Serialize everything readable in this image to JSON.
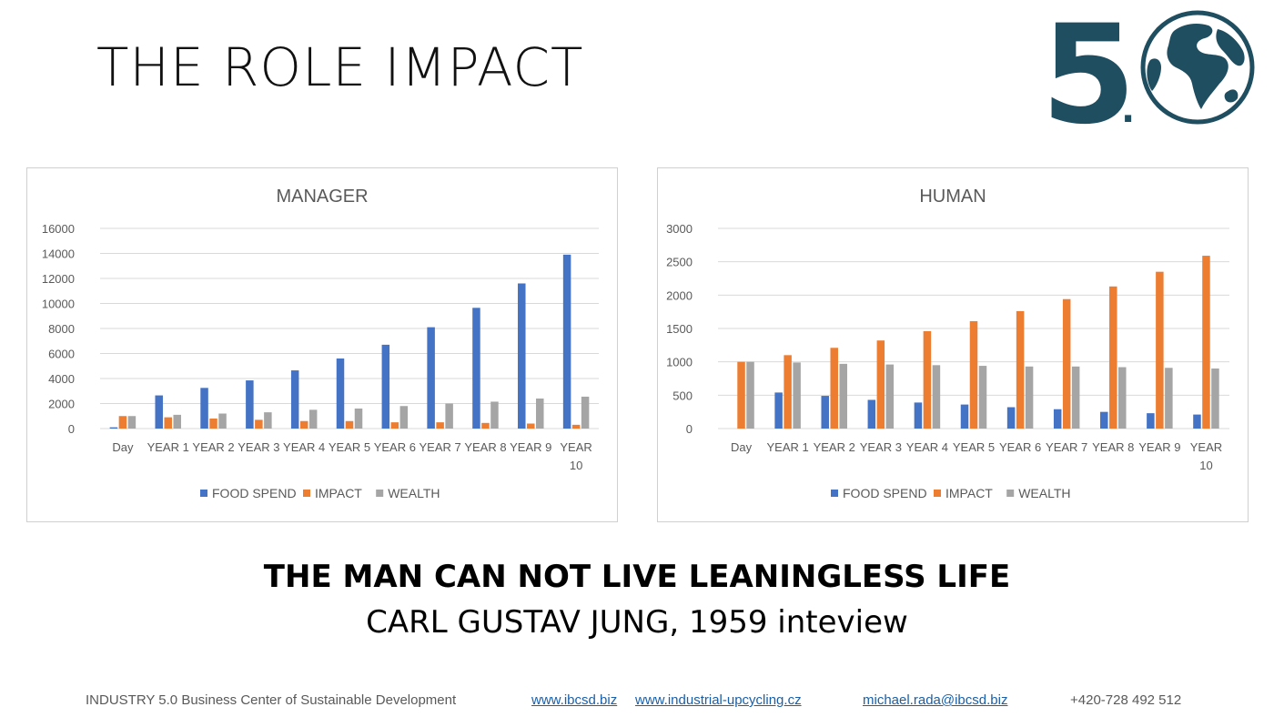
{
  "page": {
    "title": "THE ROLE IMPACT",
    "logo": {
      "text": "5",
      "dot": ".",
      "icon": "globe-icon",
      "color": "#1f4e60"
    },
    "quote": "THE MAN CAN NOT LIVE LEANINGLESS LIFE",
    "attribution": "CARL GUSTAV JUNG, 1959 inteview",
    "footer": {
      "org": "INDUSTRY 5.0 Business Center of Sustainable Development",
      "link1": "www.ibcsd.biz",
      "link2": "www.industrial-upcycling.cz",
      "email": "michael.rada@ibcsd.biz",
      "phone": "+420-728 492 512"
    }
  },
  "chart_data": [
    {
      "type": "bar",
      "title": "MANAGER",
      "categories": [
        "Day",
        "YEAR 1",
        "YEAR 2",
        "YEAR 3",
        "YEAR 4",
        "YEAR 5",
        "YEAR 6",
        "YEAR 7",
        "YEAR 8",
        "YEAR 9",
        "YEAR 10"
      ],
      "ylim": [
        0,
        16000
      ],
      "yticks": [
        0,
        2000,
        4000,
        6000,
        8000,
        10000,
        12000,
        14000,
        16000
      ],
      "grid": true,
      "legend": "bottom",
      "series": [
        {
          "name": "FOOD SPEND",
          "color": "#4472c4",
          "values": [
            100,
            2650,
            3250,
            3850,
            4650,
            5600,
            6700,
            8100,
            9650,
            11600,
            13900
          ]
        },
        {
          "name": "IMPACT",
          "color": "#ed7d31",
          "values": [
            1000,
            900,
            800,
            700,
            600,
            600,
            500,
            500,
            450,
            400,
            300
          ]
        },
        {
          "name": "WEALTH",
          "color": "#a5a5a5",
          "values": [
            1000,
            1100,
            1200,
            1300,
            1500,
            1600,
            1800,
            2000,
            2150,
            2400,
            2550
          ]
        }
      ]
    },
    {
      "type": "bar",
      "title": "HUMAN",
      "categories": [
        "Day",
        "YEAR 1",
        "YEAR 2",
        "YEAR 3",
        "YEAR 4",
        "YEAR 5",
        "YEAR 6",
        "YEAR 7",
        "YEAR 8",
        "YEAR 9",
        "YEAR 10"
      ],
      "ylim": [
        0,
        3000
      ],
      "yticks": [
        0,
        500,
        1000,
        1500,
        2000,
        2500,
        3000
      ],
      "grid": true,
      "legend": "bottom",
      "series": [
        {
          "name": "FOOD SPEND",
          "color": "#4472c4",
          "values": [
            0,
            540,
            490,
            430,
            390,
            360,
            320,
            290,
            250,
            230,
            210
          ]
        },
        {
          "name": "IMPACT",
          "color": "#ed7d31",
          "values": [
            1000,
            1100,
            1210,
            1320,
            1460,
            1610,
            1760,
            1940,
            2130,
            2350,
            2590
          ]
        },
        {
          "name": "WEALTH",
          "color": "#a5a5a5",
          "values": [
            1000,
            990,
            970,
            960,
            950,
            940,
            930,
            930,
            920,
            910,
            900
          ]
        }
      ]
    }
  ]
}
